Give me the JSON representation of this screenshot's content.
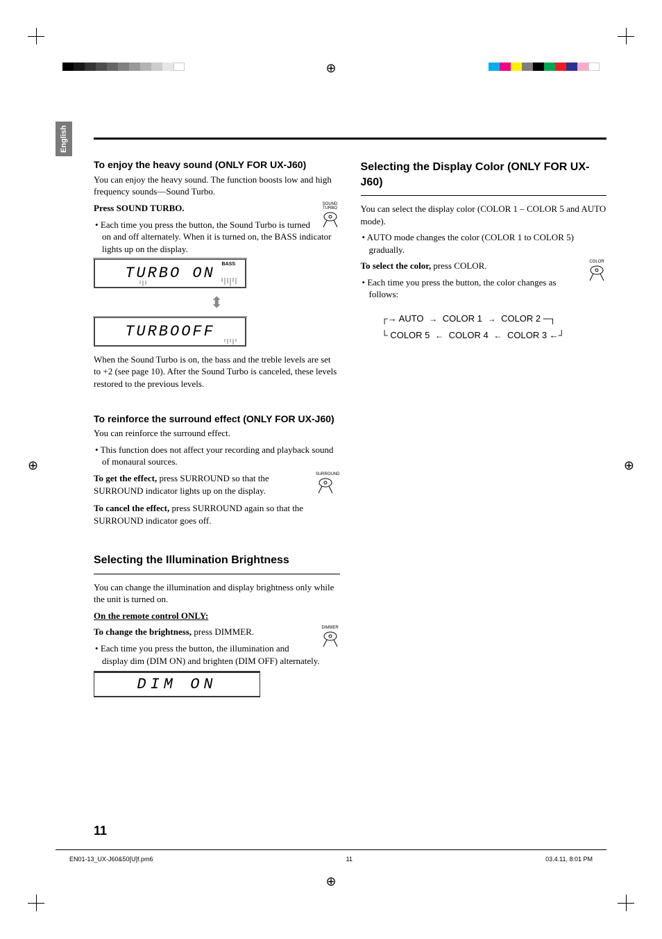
{
  "lang_tab": "English",
  "page_number": "11",
  "registration": {
    "left_grays": [
      "#000000",
      "#1a1a1a",
      "#333333",
      "#4d4d4d",
      "#666666",
      "#808080",
      "#999999",
      "#b3b3b3",
      "#cccccc",
      "#e6e6e6",
      "#ffffff"
    ],
    "right_colors": [
      "#00aeef",
      "#ec008c",
      "#fff200",
      "#7f7f7f",
      "#000000",
      "#00a651",
      "#ed1c24",
      "#2e3192",
      "#f7adc8",
      "#ffffff"
    ],
    "block_width": 16
  },
  "col_left": {
    "sec1": {
      "heading": "To enjoy the heavy sound (ONLY FOR UX-J60)",
      "intro": "You can enjoy the heavy sound. The function boosts low and high frequency sounds—Sound Turbo.",
      "press_label": "Press SOUND TURBO.",
      "bullet": "Each time you press the button, the Sound Turbo is turned on and off alternately. When it is turned on, the BASS indicator lights up on the display.",
      "button_label": "SOUND\nTURBO",
      "lcd_on": "TURBO ON",
      "bass_label": "BASS",
      "lcd_off": "TURBOOFF",
      "after": "When the Sound Turbo is on, the bass and the treble levels are set to +2 (see page 10). After the Sound Turbo is canceled, these levels restored to the previous levels."
    },
    "sec2": {
      "heading": "To reinforce the surround effect (ONLY FOR UX-J60)",
      "intro": "You can reinforce the surround effect.",
      "bullet": "This function does not affect your recording and playback sound of monaural sources.",
      "get_label": "To get the effect,",
      "get_text": " press SURROUND so that the SURROUND indicator lights up on the display.",
      "button_label": "SURROUND",
      "cancel_label": "To cancel the effect,",
      "cancel_text": " press SURROUND again so that the SURROUND indicator goes off."
    },
    "sec3": {
      "heading": "Selecting the Illumination Brightness",
      "intro": "You can change the illumination and display brightness only while the unit is turned on.",
      "remote": "On the remote control ONLY:",
      "change_label": "To change the brightness,",
      "change_text": " press DIMMER.",
      "bullet": "Each time you press the button, the illumination and display dim (DIM ON) and brighten (DIM OFF) alternately.",
      "button_label": "DIMMER",
      "lcd": "DIM ON"
    }
  },
  "col_right": {
    "sec1": {
      "heading": "Selecting the Display Color (ONLY FOR UX-J60)",
      "intro": "You can select the display color (COLOR 1 – COLOR 5 and AUTO mode).",
      "bullet1": "AUTO mode changes the color (COLOR 1 to COLOR 5) gradually.",
      "select_label": "To select the color,",
      "select_text": " press COLOR.",
      "bullet2": "Each time you press the button, the color changes as follows:",
      "button_label": "COLOR",
      "flow": {
        "r1": [
          "AUTO",
          "COLOR 1",
          "COLOR 2"
        ],
        "r2": [
          "COLOR 5",
          "COLOR 4",
          "COLOR 3"
        ]
      }
    }
  },
  "footer": {
    "file": "EN01-13_UX-J60&50[U]f.pm6",
    "page": "11",
    "datetime": "03.4.11, 8:01 PM"
  }
}
